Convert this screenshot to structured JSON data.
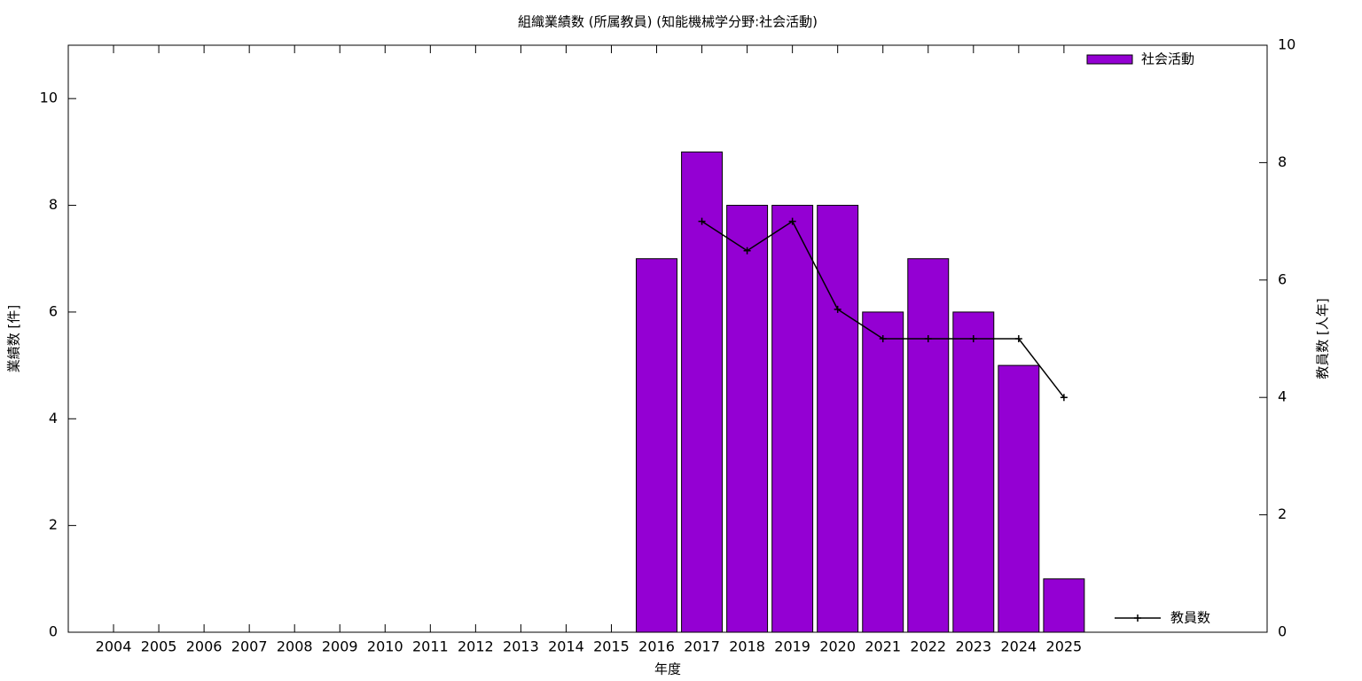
{
  "chart_data": {
    "type": "bar",
    "title": "組織業績数 (所属教員) (知能機械学分野:社会活動)",
    "xlabel": "年度",
    "ylabel": "業績数 [件]",
    "y2label": "教員数 [人年]",
    "categories": [
      "2004",
      "2005",
      "2006",
      "2007",
      "2008",
      "2009",
      "2010",
      "2011",
      "2012",
      "2013",
      "2014",
      "2015",
      "2016",
      "2017",
      "2018",
      "2019",
      "2020",
      "2021",
      "2022",
      "2023",
      "2024",
      "2025"
    ],
    "series": [
      {
        "name": "社会活動",
        "type": "bar",
        "color": "#9400d3",
        "values": [
          null,
          null,
          null,
          null,
          null,
          null,
          null,
          null,
          null,
          null,
          null,
          null,
          7,
          9,
          8,
          8,
          8,
          6,
          7,
          6,
          5,
          1
        ]
      },
      {
        "name": "教員数",
        "type": "line",
        "axis": "y2",
        "color": "#000000",
        "values": [
          null,
          null,
          null,
          null,
          null,
          null,
          null,
          null,
          null,
          null,
          null,
          null,
          null,
          7,
          6.5,
          7,
          5.5,
          5,
          5,
          5,
          5,
          4
        ]
      }
    ],
    "ylim": [
      0,
      11
    ],
    "yticks": [
      0,
      2,
      4,
      6,
      8,
      10
    ],
    "y2lim": [
      0,
      10
    ],
    "y2ticks": [
      0,
      2,
      4,
      6,
      8,
      10
    ]
  }
}
